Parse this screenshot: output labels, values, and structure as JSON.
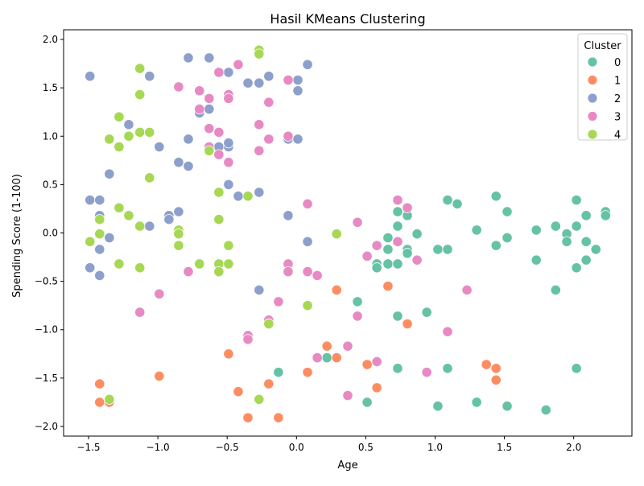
{
  "chart_data": {
    "type": "scatter",
    "title": "Hasil KMeans Clustering",
    "xlabel": "Age",
    "ylabel": "Spending Score (1-100)",
    "xlim": [
      -1.68,
      2.42
    ],
    "ylim": [
      -2.1,
      2.1
    ],
    "xticks": [
      "−1.5",
      "−1.0",
      "−0.5",
      "0.0",
      "0.5",
      "1.0",
      "1.5",
      "2.0"
    ],
    "xtick_values": [
      -1.5,
      -1.0,
      -0.5,
      0.0,
      0.5,
      1.0,
      1.5,
      2.0
    ],
    "yticks": [
      "−2.0",
      "−1.5",
      "−1.0",
      "−0.5",
      "0.0",
      "0.5",
      "1.0",
      "1.5",
      "2.0"
    ],
    "ytick_values": [
      -2.0,
      -1.5,
      -1.0,
      -0.5,
      0.0,
      0.5,
      1.0,
      1.5,
      2.0
    ],
    "grid": false,
    "legend": {
      "title": "Cluster",
      "placement": "top-right"
    },
    "series": [
      {
        "name": "0",
        "color": "#66c2a5",
        "points": [
          [
            1.09,
            0.34
          ],
          [
            1.16,
            0.3
          ],
          [
            1.44,
            0.38
          ],
          [
            1.52,
            0.22
          ],
          [
            2.02,
            0.34
          ],
          [
            2.23,
            0.22
          ],
          [
            2.23,
            0.18
          ],
          [
            0.73,
            0.22
          ],
          [
            0.8,
            0.18
          ],
          [
            0.73,
            0.07
          ],
          [
            0.66,
            -0.05
          ],
          [
            0.87,
            -0.01
          ],
          [
            1.3,
            0.03
          ],
          [
            1.73,
            0.03
          ],
          [
            1.87,
            0.07
          ],
          [
            2.02,
            0.07
          ],
          [
            2.09,
            0.18
          ],
          [
            1.95,
            -0.01
          ],
          [
            1.95,
            -0.09
          ],
          [
            2.09,
            -0.09
          ],
          [
            2.16,
            -0.17
          ],
          [
            1.52,
            -0.05
          ],
          [
            1.44,
            -0.13
          ],
          [
            1.02,
            -0.17
          ],
          [
            1.09,
            -0.17
          ],
          [
            0.8,
            -0.17
          ],
          [
            0.8,
            -0.21
          ],
          [
            0.66,
            -0.17
          ],
          [
            0.58,
            -0.32
          ],
          [
            0.58,
            -0.36
          ],
          [
            0.66,
            -0.32
          ],
          [
            0.73,
            -0.32
          ],
          [
            1.73,
            -0.28
          ],
          [
            2.02,
            -0.36
          ],
          [
            2.09,
            -0.28
          ],
          [
            1.87,
            -0.59
          ],
          [
            0.44,
            -0.71
          ],
          [
            0.94,
            -0.82
          ],
          [
            0.73,
            -0.86
          ],
          [
            -0.13,
            -1.44
          ],
          [
            0.22,
            -1.29
          ],
          [
            0.73,
            -1.4
          ],
          [
            1.09,
            -1.4
          ],
          [
            2.02,
            -1.4
          ],
          [
            0.51,
            -1.75
          ],
          [
            1.02,
            -1.79
          ],
          [
            1.3,
            -1.75
          ],
          [
            1.52,
            -1.79
          ],
          [
            1.8,
            -1.83
          ]
        ]
      },
      {
        "name": "1",
        "color": "#fc8d62",
        "points": [
          [
            -1.42,
            -1.56
          ],
          [
            -1.42,
            -1.75
          ],
          [
            -1.35,
            -1.75
          ],
          [
            -0.99,
            -1.48
          ],
          [
            -0.49,
            -1.25
          ],
          [
            -0.42,
            -1.64
          ],
          [
            -0.35,
            -1.91
          ],
          [
            -0.2,
            -1.56
          ],
          [
            -0.13,
            -1.91
          ],
          [
            0.08,
            -1.44
          ],
          [
            0.22,
            -1.17
          ],
          [
            0.29,
            -1.29
          ],
          [
            0.29,
            -0.59
          ],
          [
            0.51,
            -1.36
          ],
          [
            0.58,
            -1.6
          ],
          [
            0.66,
            -0.55
          ],
          [
            0.8,
            -0.94
          ],
          [
            1.37,
            -1.36
          ],
          [
            1.44,
            -1.4
          ],
          [
            1.44,
            -1.52
          ]
        ]
      },
      {
        "name": "2",
        "color": "#8da0cb",
        "points": [
          [
            -1.49,
            1.62
          ],
          [
            -1.06,
            1.62
          ],
          [
            -0.78,
            1.81
          ],
          [
            -0.63,
            1.81
          ],
          [
            -0.49,
            1.66
          ],
          [
            -0.35,
            1.55
          ],
          [
            -0.27,
            1.55
          ],
          [
            -0.2,
            1.62
          ],
          [
            0.01,
            1.58
          ],
          [
            0.01,
            1.47
          ],
          [
            0.08,
            1.74
          ],
          [
            -1.21,
            1.12
          ],
          [
            -0.99,
            0.89
          ],
          [
            -0.78,
            0.97
          ],
          [
            -0.7,
            1.24
          ],
          [
            -0.63,
            1.28
          ],
          [
            -0.56,
            0.89
          ],
          [
            -0.49,
            0.89
          ],
          [
            -0.49,
            0.93
          ],
          [
            -0.06,
            0.97
          ],
          [
            0.01,
            0.97
          ],
          [
            -1.35,
            0.61
          ],
          [
            -0.85,
            0.73
          ],
          [
            -0.78,
            0.69
          ],
          [
            -0.49,
            0.5
          ],
          [
            -0.42,
            0.38
          ],
          [
            -0.27,
            0.42
          ],
          [
            -1.49,
            0.34
          ],
          [
            -1.42,
            0.34
          ],
          [
            -1.42,
            0.18
          ],
          [
            -0.92,
            0.18
          ],
          [
            -0.92,
            0.14
          ],
          [
            -0.85,
            0.22
          ],
          [
            -0.06,
            0.18
          ],
          [
            -1.35,
            -0.05
          ],
          [
            -1.06,
            0.07
          ],
          [
            -1.42,
            -0.17
          ],
          [
            0.08,
            -0.09
          ],
          [
            -1.49,
            -0.36
          ],
          [
            -1.42,
            -0.44
          ],
          [
            -0.27,
            -0.59
          ]
        ]
      },
      {
        "name": "3",
        "color": "#e78ac3",
        "points": [
          [
            -0.85,
            1.51
          ],
          [
            -0.56,
            1.66
          ],
          [
            -0.49,
            1.43
          ],
          [
            -0.42,
            1.74
          ],
          [
            -0.7,
            1.47
          ],
          [
            -0.63,
            1.39
          ],
          [
            -0.49,
            1.39
          ],
          [
            -0.2,
            1.35
          ],
          [
            -0.06,
            1.58
          ],
          [
            -0.7,
            1.28
          ],
          [
            -0.63,
            1.08
          ],
          [
            -0.56,
            1.04
          ],
          [
            -0.27,
            1.12
          ],
          [
            -0.2,
            0.97
          ],
          [
            -0.06,
            1.0
          ],
          [
            -0.63,
            0.89
          ],
          [
            -0.56,
            0.81
          ],
          [
            -0.27,
            0.85
          ],
          [
            -0.49,
            0.73
          ],
          [
            0.08,
            0.3
          ],
          [
            0.44,
            0.11
          ],
          [
            0.73,
            0.34
          ],
          [
            0.8,
            0.26
          ],
          [
            0.58,
            -0.13
          ],
          [
            0.73,
            -0.09
          ],
          [
            0.51,
            -0.24
          ],
          [
            0.87,
            -0.28
          ],
          [
            -0.78,
            -0.4
          ],
          [
            -0.06,
            -0.32
          ],
          [
            -0.06,
            -0.4
          ],
          [
            0.08,
            -0.4
          ],
          [
            0.15,
            -0.44
          ],
          [
            1.23,
            -0.59
          ],
          [
            -0.99,
            -0.63
          ],
          [
            -0.13,
            -0.71
          ],
          [
            -1.13,
            -0.82
          ],
          [
            0.44,
            -0.86
          ],
          [
            -0.2,
            -0.9
          ],
          [
            -0.35,
            -1.06
          ],
          [
            -0.35,
            -1.1
          ],
          [
            0.37,
            -1.17
          ],
          [
            1.09,
            -1.02
          ],
          [
            0.15,
            -1.29
          ],
          [
            0.58,
            -1.33
          ],
          [
            0.94,
            -1.44
          ],
          [
            0.37,
            -1.68
          ]
        ]
      },
      {
        "name": "4",
        "color": "#a6d854",
        "points": [
          [
            -1.13,
            1.7
          ],
          [
            -1.13,
            1.43
          ],
          [
            -0.27,
            1.89
          ],
          [
            -0.27,
            1.85
          ],
          [
            -1.28,
            1.2
          ],
          [
            -1.21,
            1.0
          ],
          [
            -1.13,
            1.04
          ],
          [
            -1.06,
            1.04
          ],
          [
            -1.35,
            0.97
          ],
          [
            -1.28,
            0.89
          ],
          [
            -0.63,
            0.85
          ],
          [
            -1.06,
            0.57
          ],
          [
            -0.56,
            0.42
          ],
          [
            -0.35,
            0.38
          ],
          [
            -1.28,
            0.26
          ],
          [
            -1.21,
            0.18
          ],
          [
            -1.42,
            0.14
          ],
          [
            -0.56,
            0.14
          ],
          [
            -1.13,
            0.07
          ],
          [
            -1.42,
            -0.01
          ],
          [
            -1.49,
            -0.09
          ],
          [
            -0.85,
            0.03
          ],
          [
            -0.85,
            -0.01
          ],
          [
            -0.85,
            -0.13
          ],
          [
            -0.49,
            -0.13
          ],
          [
            0.29,
            -0.01
          ],
          [
            -1.28,
            -0.32
          ],
          [
            -1.13,
            -0.36
          ],
          [
            -0.7,
            -0.32
          ],
          [
            -0.56,
            -0.32
          ],
          [
            -0.56,
            -0.4
          ],
          [
            -0.49,
            -0.32
          ],
          [
            0.08,
            -0.75
          ],
          [
            -0.2,
            -0.94
          ],
          [
            -1.35,
            -1.72
          ],
          [
            -0.27,
            -1.72
          ]
        ]
      }
    ]
  }
}
